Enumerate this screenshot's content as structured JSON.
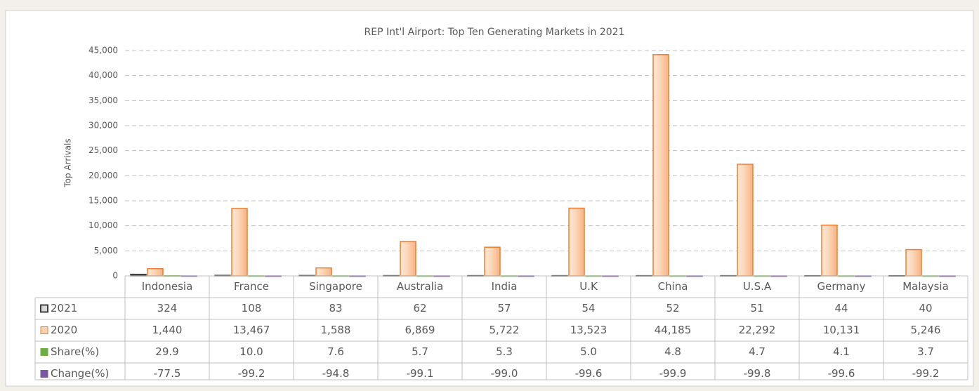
{
  "chart_data": {
    "type": "bar",
    "title": "REP Int'l Airport: Top Ten Generating Markets in 2021",
    "y_label": "Top Arrivals",
    "categories": [
      "Indonesia",
      "France",
      "Singapore",
      "Australia",
      "India",
      "U.K",
      "China",
      "U.S.A",
      "Germany",
      "Malaysia"
    ],
    "series": [
      {
        "name": "2021",
        "color": "#404040",
        "values": [
          324,
          108,
          83,
          62,
          57,
          54,
          52,
          51,
          44,
          40
        ]
      },
      {
        "name": "2020",
        "color": "#ed7d31",
        "values": [
          1440,
          13467,
          1588,
          6869,
          5722,
          13523,
          44185,
          22292,
          10131,
          5246
        ],
        "value_labels": [
          "1,440",
          "13,467",
          "1,588",
          "6,869",
          "5,722",
          "13,523",
          "44,185",
          "22,292",
          "10,131",
          "5,246"
        ]
      },
      {
        "name": "Share(%)",
        "color": "#70ad47",
        "values": [
          29.9,
          10,
          7.6,
          5.7,
          5.3,
          5,
          4.8,
          4.7,
          4.1,
          3.7
        ],
        "value_labels": [
          "29.9",
          "10.0",
          "7.6",
          "5.7",
          "5.3",
          "5.0",
          "4.8",
          "4.7",
          "4.1",
          "3.7"
        ]
      },
      {
        "name": "Change(%)",
        "color": "#7e57a4",
        "values": [
          -77.5,
          -99.2,
          -94.8,
          -99.1,
          -99,
          -99.6,
          -99.9,
          -99.8,
          -99.6,
          -99.2
        ],
        "value_labels": [
          "-77.5",
          "-99.2",
          "-94.8",
          "-99.1",
          "-99.0",
          "-99.6",
          "-99.9",
          "-99.8",
          "-99.6",
          "-99.2"
        ]
      }
    ],
    "ylim": [
      0,
      45000
    ],
    "yticks": [
      0,
      {
        "value": 5000,
        "label": "5,000"
      },
      {
        "value": 10000,
        "label": "10,000"
      },
      {
        "value": 15000,
        "label": "15,000"
      },
      {
        "value": 20000,
        "label": "20,000"
      },
      {
        "value": 25000,
        "label": "25,000"
      },
      {
        "value": 30000,
        "label": "30,000"
      },
      {
        "value": 35000,
        "label": "35,000"
      },
      {
        "value": 40000,
        "label": "40,000"
      },
      {
        "value": 45000,
        "label": "45,000"
      }
    ],
    "grid": true,
    "data_table": true
  }
}
